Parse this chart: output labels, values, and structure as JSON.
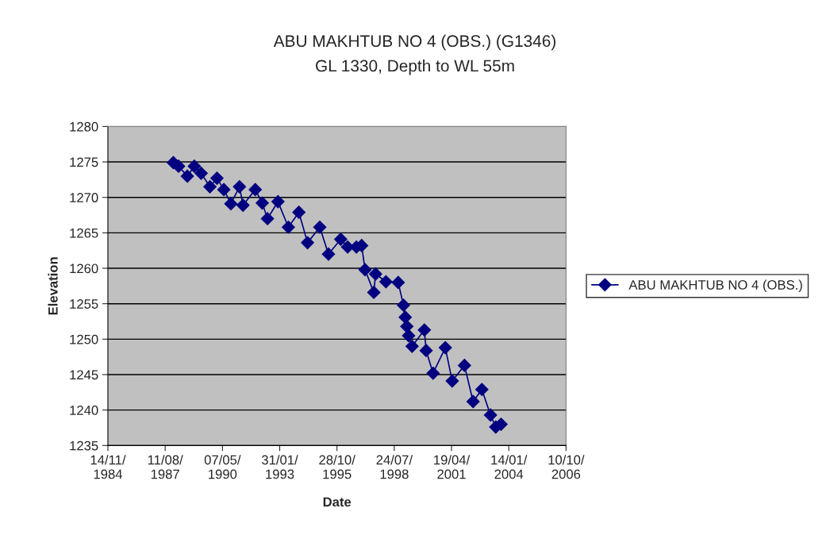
{
  "chart_data": {
    "type": "line",
    "title": "ABU MAKHTUB NO 4 (OBS.) (G1346)",
    "subtitle": "GL 1330, Depth to WL 55m",
    "xlabel": "Date",
    "ylabel": "Elevation",
    "x": [
      "1988-01",
      "1988-04",
      "1988-09",
      "1989-01",
      "1989-05",
      "1989-10",
      "1990-02",
      "1990-06",
      "1990-10",
      "1991-03",
      "1991-05",
      "1991-12",
      "1992-04",
      "1992-07",
      "1993-01",
      "1993-07",
      "1994-01",
      "1994-06",
      "1995-01",
      "1995-06",
      "1996-01",
      "1996-05",
      "1996-10",
      "1997-01",
      "1997-03",
      "1997-08",
      "1997-09",
      "1998-03",
      "1998-10",
      "1999-01",
      "1999-02",
      "1999-03",
      "1999-04",
      "1999-06",
      "2000-01",
      "2000-02",
      "2000-06",
      "2001-01",
      "2001-05",
      "2001-12",
      "2002-05",
      "2002-10",
      "2003-03",
      "2003-06",
      "2003-09"
    ],
    "series": [
      {
        "name": "ABU MAKHTUB NO 4 (OBS.)",
        "color": "#000080",
        "values": [
          1274.9,
          1274.4,
          1273.0,
          1274.4,
          1273.4,
          1271.5,
          1272.7,
          1271.1,
          1269.1,
          1271.5,
          1268.9,
          1271.1,
          1269.2,
          1267.0,
          1269.4,
          1265.8,
          1267.9,
          1263.6,
          1265.8,
          1262.0,
          1264.1,
          1263.0,
          1263.0,
          1263.2,
          1259.8,
          1256.6,
          1259.2,
          1258.1,
          1258.0,
          1254.8,
          1253.1,
          1251.8,
          1250.5,
          1249.0,
          1251.3,
          1248.4,
          1245.2,
          1248.8,
          1244.1,
          1246.3,
          1241.2,
          1242.9,
          1239.3,
          1237.6,
          1238.0
        ]
      }
    ],
    "xlim": [
      "1984-11-14",
      "2006-10-10"
    ],
    "xticks": [
      {
        "value": "1984-11-14",
        "label": "14/11/\n1984"
      },
      {
        "value": "1987-08-11",
        "label": "11/08/\n1987"
      },
      {
        "value": "1990-05-07",
        "label": "07/05/\n1990"
      },
      {
        "value": "1993-01-31",
        "label": "31/01/\n1993"
      },
      {
        "value": "1995-10-28",
        "label": "28/10/\n1995"
      },
      {
        "value": "1998-07-24",
        "label": "24/07/\n1998"
      },
      {
        "value": "2001-04-19",
        "label": "19/04/\n2001"
      },
      {
        "value": "2004-01-14",
        "label": "14/01/\n2004"
      },
      {
        "value": "2006-10-10",
        "label": "10/10/\n2006"
      }
    ],
    "ylim": [
      1235,
      1280
    ],
    "yticks": [
      1235,
      1240,
      1245,
      1250,
      1255,
      1260,
      1265,
      1270,
      1275,
      1280
    ],
    "grid": "y",
    "legend": "right",
    "marker": "diamond",
    "line_style": "solid"
  }
}
